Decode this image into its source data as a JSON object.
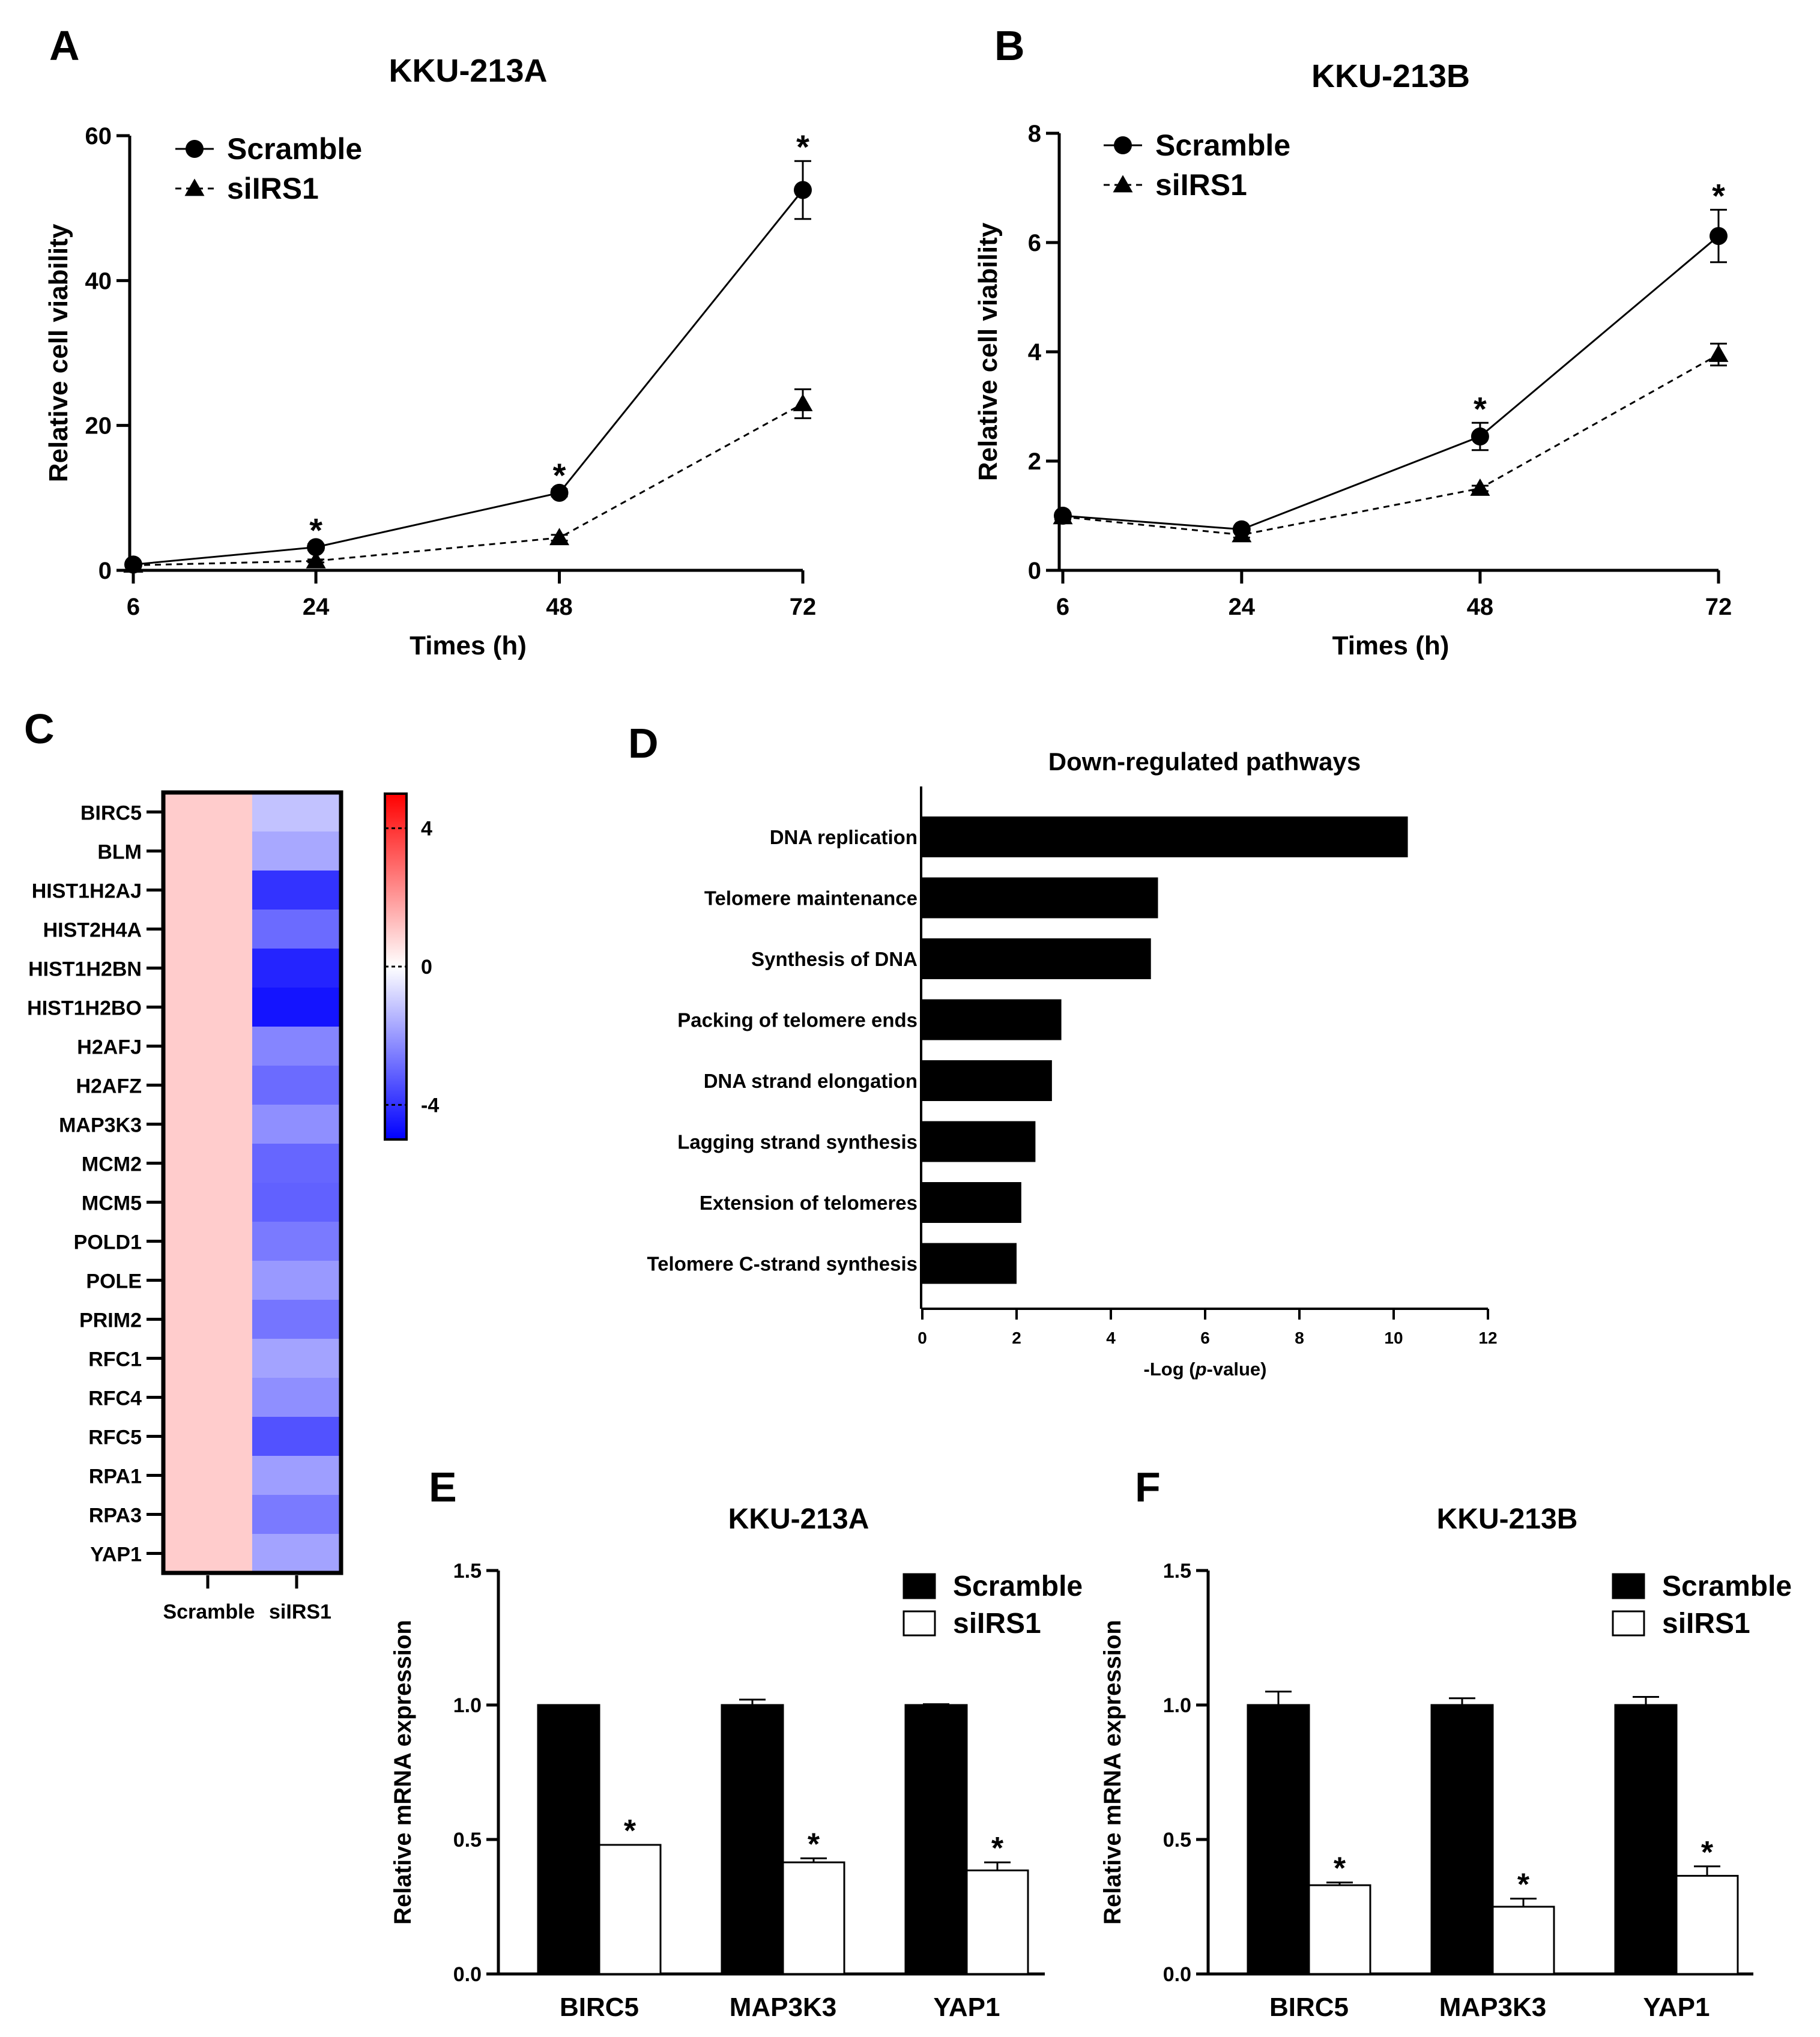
{
  "panels": [
    {
      "id": "A",
      "label": "A"
    },
    {
      "id": "B",
      "label": "B"
    },
    {
      "id": "C",
      "label": "C"
    },
    {
      "id": "D",
      "label": "D"
    },
    {
      "id": "E",
      "label": "E"
    },
    {
      "id": "F",
      "label": "F"
    }
  ],
  "chart_data": [
    {
      "panel": "A",
      "type": "line",
      "title": "KKU-213A",
      "xlabel": "Times (h)",
      "ylabel": "Relative cell viability",
      "x": [
        6,
        24,
        48,
        72
      ],
      "xticks": [
        "6",
        "24",
        "48",
        "72"
      ],
      "yticks": [
        "0",
        "20",
        "40",
        "60"
      ],
      "ylim": [
        0,
        60
      ],
      "series": [
        {
          "name": "Scramble",
          "marker": "circle",
          "line": "solid",
          "values": [
            0.8,
            3.2,
            10.7,
            52.5
          ],
          "errors": [
            0.2,
            0.4,
            0.5,
            4.0
          ]
        },
        {
          "name": "siIRS1",
          "marker": "triangle",
          "line": "dashed",
          "values": [
            0.7,
            1.3,
            4.5,
            23.0
          ],
          "errors": [
            0.1,
            0.2,
            0.4,
            2.0
          ]
        }
      ],
      "significance": [
        {
          "x": 24,
          "label": "*"
        },
        {
          "x": 48,
          "label": "*"
        },
        {
          "x": 72,
          "label": "*"
        }
      ],
      "legend": "top-left"
    },
    {
      "panel": "B",
      "type": "line",
      "title": "KKU-213B",
      "xlabel": "Times (h)",
      "ylabel": "Relative cell viability",
      "x": [
        6,
        24,
        48,
        72
      ],
      "xticks": [
        "6",
        "24",
        "48",
        "72"
      ],
      "yticks": [
        "0",
        "2",
        "4",
        "6",
        "8"
      ],
      "ylim": [
        0,
        8
      ],
      "series": [
        {
          "name": "Scramble",
          "marker": "circle",
          "line": "solid",
          "values": [
            1.0,
            0.75,
            2.45,
            6.12
          ],
          "errors": [
            0.05,
            0.05,
            0.25,
            0.48
          ]
        },
        {
          "name": "siIRS1",
          "marker": "triangle",
          "line": "dashed",
          "values": [
            0.98,
            0.65,
            1.5,
            3.95
          ],
          "errors": [
            0.05,
            0.05,
            0.05,
            0.2
          ]
        }
      ],
      "significance": [
        {
          "x": 48,
          "label": "*"
        },
        {
          "x": 72,
          "label": "*"
        }
      ],
      "legend": "top-left"
    },
    {
      "panel": "C",
      "type": "heatmap",
      "rows": [
        "BIRC5",
        "BLM",
        "HIST1H2AJ",
        "HIST2H4A",
        "HIST1H2BN",
        "HIST1H2BO",
        "H2AFJ",
        "H2AFZ",
        "MAP3K3",
        "MCM2",
        "MCM5",
        "POLD1",
        "POLE",
        "PRIM2",
        "RFC1",
        "RFC4",
        "RFC5",
        "RPA1",
        "RPA3",
        "YAP1"
      ],
      "columns": [
        "Scramble",
        "siIRS1"
      ],
      "values": [
        [
          1,
          -1.2
        ],
        [
          1,
          -1.7
        ],
        [
          1,
          -4.0
        ],
        [
          1,
          -2.9
        ],
        [
          1,
          -4.3
        ],
        [
          1,
          -4.6
        ],
        [
          1,
          -2.4
        ],
        [
          1,
          -2.9
        ],
        [
          1,
          -2.2
        ],
        [
          1,
          -3.0
        ],
        [
          1,
          -3.1
        ],
        [
          1,
          -2.6
        ],
        [
          1,
          -2.0
        ],
        [
          1,
          -2.7
        ],
        [
          1,
          -1.8
        ],
        [
          1,
          -2.2
        ],
        [
          1,
          -3.4
        ],
        [
          1,
          -1.9
        ],
        [
          1,
          -2.6
        ],
        [
          1,
          -1.8
        ]
      ],
      "colorbar": {
        "min": -5,
        "max": 5,
        "ticks": [
          "4",
          "0",
          "-4"
        ],
        "colors": [
          "#0000ff",
          "#ffffff",
          "#ff0000"
        ]
      }
    },
    {
      "panel": "D",
      "type": "bar",
      "orientation": "horizontal",
      "title": "Down-regulated pathways",
      "xlabel": "-Log (p-value)",
      "categories": [
        "DNA replication",
        "Telomere maintenance",
        "Synthesis of DNA",
        "Packing of telomere ends",
        "DNA strand elongation",
        "Lagging strand synthesis",
        "Extension of telomeres",
        "Telomere C-strand synthesis"
      ],
      "values": [
        10.3,
        5.0,
        4.85,
        2.95,
        2.75,
        2.4,
        2.1,
        2.0
      ],
      "xlim": [
        0,
        12
      ],
      "xticks": [
        "0",
        "2",
        "4",
        "6",
        "8",
        "10",
        "12"
      ],
      "bar_color": "#000000"
    },
    {
      "panel": "E",
      "type": "bar",
      "title": "KKU-213A",
      "ylabel": "Relative mRNA expression",
      "categories": [
        "BIRC5",
        "MAP3K3",
        "YAP1"
      ],
      "ylim": [
        0,
        1.5
      ],
      "yticks": [
        "0.0",
        "0.5",
        "1.0",
        "1.5"
      ],
      "series": [
        {
          "name": "Scramble",
          "color": "#000000",
          "values": [
            1.0,
            1.0,
            1.0
          ],
          "errors": [
            0.0,
            0.02,
            0.003
          ]
        },
        {
          "name": "siIRS1",
          "color": "#ffffff",
          "values": [
            0.48,
            0.415,
            0.385
          ],
          "errors": [
            0.0,
            0.015,
            0.03
          ]
        }
      ],
      "significance": [
        "*",
        "*",
        "*"
      ],
      "legend": "top-right"
    },
    {
      "panel": "F",
      "type": "bar",
      "title": "KKU-213B",
      "ylabel": "Relative mRNA expression",
      "categories": [
        "BIRC5",
        "MAP3K3",
        "YAP1"
      ],
      "ylim": [
        0,
        1.5
      ],
      "yticks": [
        "0.0",
        "0.5",
        "1.0",
        "1.5"
      ],
      "series": [
        {
          "name": "Scramble",
          "color": "#000000",
          "values": [
            1.0,
            1.0,
            1.0
          ],
          "errors": [
            0.05,
            0.025,
            0.03
          ]
        },
        {
          "name": "siIRS1",
          "color": "#ffffff",
          "values": [
            0.33,
            0.25,
            0.365
          ],
          "errors": [
            0.01,
            0.03,
            0.035
          ]
        }
      ],
      "significance": [
        "*",
        "*",
        "*"
      ],
      "legend": "top-right"
    }
  ]
}
